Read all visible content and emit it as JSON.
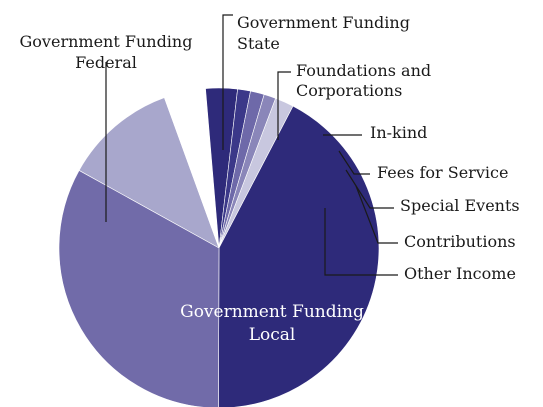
{
  "chart_data": {
    "type": "pie",
    "title": "",
    "start_angle_deg": 299,
    "direction": "clockwise",
    "slices": [
      {
        "name": "Government Funding State",
        "value": 11.4,
        "color": "#a8a7cc",
        "label_lines": [
          "Government Funding",
          "State"
        ]
      },
      {
        "name": "Foundations and Corporations",
        "value": 4.2,
        "color": "#ffffff",
        "label_lines": [
          "Foundations and",
          "Corporations"
        ]
      },
      {
        "name": "In-kind",
        "value": 3.2,
        "color": "#2e2a7a",
        "label_lines": [
          "In-kind"
        ]
      },
      {
        "name": "Fees for Service",
        "value": 1.3,
        "color": "#3b3889",
        "label_lines": [
          "Fees for Service"
        ]
      },
      {
        "name": "Special Events",
        "value": 1.4,
        "color": "#6e69a9",
        "label_lines": [
          "Special Events"
        ]
      },
      {
        "name": "Contributions",
        "value": 1.2,
        "color": "#8a86b9",
        "label_lines": [
          "Contributions"
        ]
      },
      {
        "name": "Other Income",
        "value": 1.9,
        "color": "#c8c7df",
        "label_lines": [
          "Other Income"
        ]
      },
      {
        "name": "Government Funding Local",
        "value": 42.4,
        "color": "#2e2a7a",
        "label_lines": [
          "Government Funding",
          "Local"
        ]
      },
      {
        "name": "Government Funding Federal",
        "value": 33.0,
        "color": "#716ba9",
        "label_lines": [
          "Government Funding",
          "Federal"
        ]
      }
    ]
  }
}
